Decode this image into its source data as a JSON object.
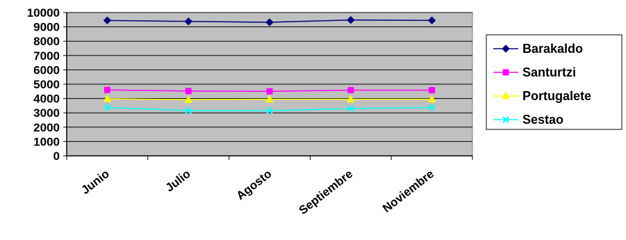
{
  "chart_data": {
    "type": "line",
    "categories": [
      "Junio",
      "Julio",
      "Agosto",
      "Septiembre",
      "Noviembre"
    ],
    "ylim": [
      0,
      10000
    ],
    "yticks": [
      0,
      1000,
      2000,
      3000,
      4000,
      5000,
      6000,
      7000,
      8000,
      9000,
      10000
    ],
    "grid": true,
    "legend_position": "right",
    "plot_background": "#c0c0c0",
    "series": [
      {
        "name": "Barakaldo",
        "color": "#000080",
        "marker": "diamond",
        "values": [
          9450,
          9380,
          9320,
          9480,
          9450
        ]
      },
      {
        "name": "Santurtzi",
        "color": "#ff00ff",
        "marker": "square",
        "values": [
          4600,
          4520,
          4500,
          4580,
          4580
        ]
      },
      {
        "name": "Portugalete",
        "color": "#ffff00",
        "marker": "triangle",
        "values": [
          3980,
          3920,
          3950,
          3950,
          3950
        ]
      },
      {
        "name": "Sestao",
        "color": "#00ffff",
        "marker": "x",
        "values": [
          3380,
          3150,
          3150,
          3300,
          3380
        ]
      }
    ]
  }
}
